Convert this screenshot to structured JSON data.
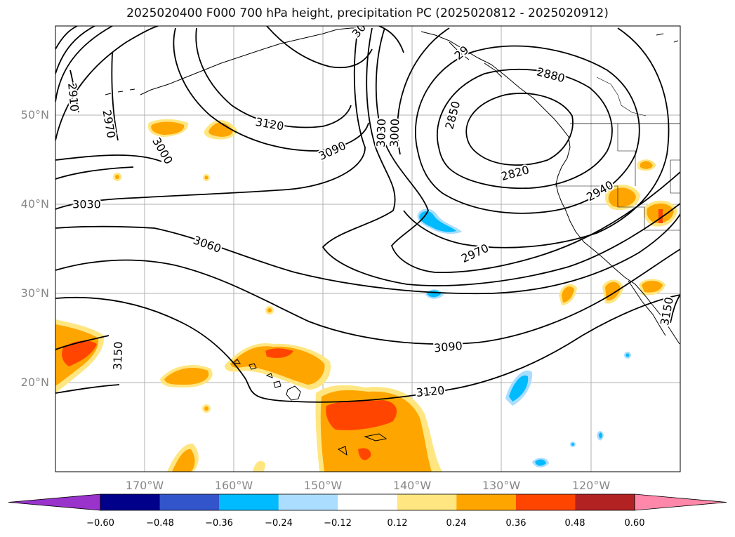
{
  "title": "2025020400 F000 700 hPa height, precipitation PC (2025020812 - 2025020912)",
  "axes": {
    "lon_labels": [
      "170°W",
      "160°W",
      "150°W",
      "140°W",
      "130°W",
      "120°W"
    ],
    "lat_labels": [
      "50°N",
      "40°N",
      "30°N",
      "20°N"
    ],
    "lon_range": [
      -180,
      -110
    ],
    "lat_range": [
      10,
      60
    ],
    "grid": true
  },
  "contour_labels": [
    {
      "text": "2910",
      "lon": -178,
      "lat": 52,
      "rot": 85
    },
    {
      "text": "2970",
      "lon": -174,
      "lat": 49,
      "rot": 80
    },
    {
      "text": "3000",
      "lon": -168,
      "lat": 46,
      "rot": 60
    },
    {
      "text": "3120",
      "lon": -156,
      "lat": 49,
      "rot": 10
    },
    {
      "text": "3090",
      "lon": -149,
      "lat": 46,
      "rot": -25
    },
    {
      "text": "3030",
      "lon": -176.5,
      "lat": 40,
      "rot": 0
    },
    {
      "text": "3060",
      "lon": -163,
      "lat": 35.5,
      "rot": 20
    },
    {
      "text": "3030",
      "lon": -143.5,
      "lat": 48,
      "rot": -88
    },
    {
      "text": "3000",
      "lon": -142,
      "lat": 48,
      "rot": -88
    },
    {
      "text": "2850",
      "lon": -135.5,
      "lat": 50,
      "rot": -75
    },
    {
      "text": "2820",
      "lon": -128.5,
      "lat": 43.5,
      "rot": -15
    },
    {
      "text": "2880",
      "lon": -124.5,
      "lat": 54.5,
      "rot": 15
    },
    {
      "text": "2940",
      "lon": -119,
      "lat": 41.5,
      "rot": -30
    },
    {
      "text": "2970",
      "lon": -133,
      "lat": 34.5,
      "rot": -25
    },
    {
      "text": "3090",
      "lon": -136,
      "lat": 24,
      "rot": -5
    },
    {
      "text": "3120",
      "lon": -138,
      "lat": 19,
      "rot": -5
    },
    {
      "text": "3150",
      "lon": -173,
      "lat": 23,
      "rot": -88
    },
    {
      "text": "3150",
      "lon": -111.5,
      "lat": 28,
      "rot": -80
    },
    {
      "text": "29",
      "lon": -134.5,
      "lat": 57,
      "rot": -40
    },
    {
      "text": "30",
      "lon": -146,
      "lat": 59.5,
      "rot": -50
    }
  ],
  "colorbar": {
    "ticks": [
      "−0.60",
      "−0.48",
      "−0.36",
      "−0.24",
      "−0.12",
      "0.12",
      "0.24",
      "0.36",
      "0.48",
      "0.60"
    ],
    "colors": [
      "#9933cc",
      "#00008b",
      "#3355cc",
      "#00bbff",
      "#aaddff",
      "#ffffff",
      "#ffe680",
      "#ffa500",
      "#ff4500",
      "#b22222",
      "#ff88aa"
    ]
  }
}
